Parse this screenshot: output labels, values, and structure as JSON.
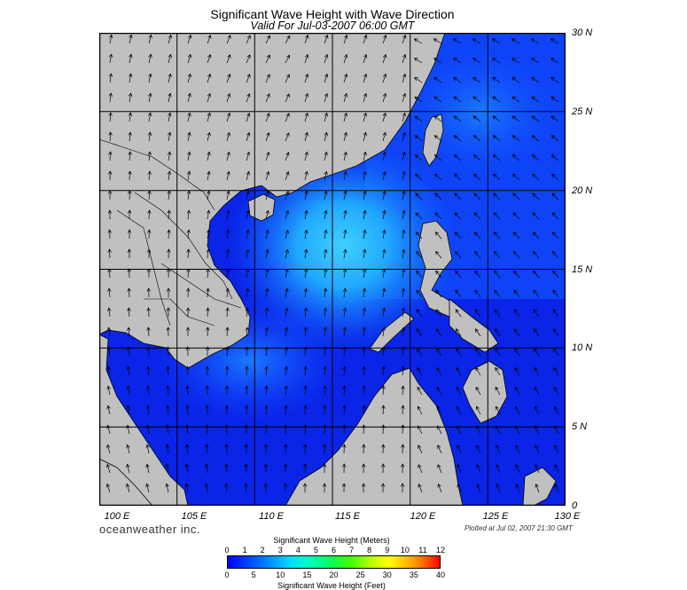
{
  "header": {
    "title": "Significant Wave Height with Wave Direction",
    "subtitle": "Valid For Jul-03-2007 06:00 GMT"
  },
  "axes": {
    "lat_labels": [
      "30 N",
      "25 N",
      "20 N",
      "15 N",
      "10 N",
      "5 N",
      "0"
    ],
    "lon_labels": [
      "100 E",
      "105 E",
      "110 E",
      "115 E",
      "120 E",
      "125 E",
      "130 E"
    ],
    "lat_range": [
      0,
      30
    ],
    "lon_range": [
      100,
      130
    ]
  },
  "footer": {
    "brand": "oceanweather inc.",
    "plotted": "Plotted at Jul 02, 2007 21:30 GMT"
  },
  "colorbar": {
    "meters_title": "Significant Wave Height (Meters)",
    "feet_title": "Significant Wave Height (Feet)",
    "meters_ticks": [
      "0",
      "1",
      "2",
      "3",
      "4",
      "5",
      "6",
      "7",
      "8",
      "9",
      "10",
      "11",
      "12"
    ],
    "feet_ticks": [
      "0",
      "5",
      "10",
      "15",
      "20",
      "25",
      "30",
      "35",
      "40"
    ],
    "range_m": [
      0,
      12
    ],
    "range_ft": [
      0,
      40
    ]
  },
  "colors": {
    "land": "#c0c0c0",
    "ocean_low": "#0000e6",
    "ocean_mid": "#1060ff",
    "ocean_high": "#30c0ff",
    "arrow": "#000000",
    "grid": "#000000"
  }
}
